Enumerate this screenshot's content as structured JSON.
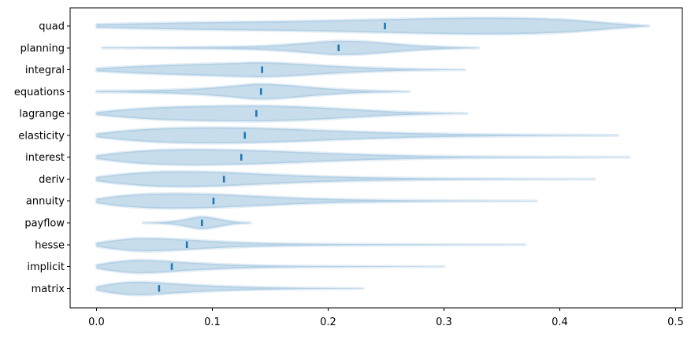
{
  "figure": {
    "background": "#ffffff",
    "violin_fill_color": "#1f77b4",
    "violin_fill_opacity": 0.25,
    "violin_halo_opacity": 0.12,
    "median_tick_color": "#1f77b4",
    "axis_line_color": "#000000",
    "tick_label_color": "#000000"
  },
  "chart_data": {
    "type": "violin",
    "orientation": "horizontal",
    "title": "",
    "xlabel": "",
    "ylabel": "",
    "grid": false,
    "legend": null,
    "xlim": [
      -0.023,
      0.506
    ],
    "x_ticks": [
      0.0,
      0.1,
      0.2,
      0.3,
      0.4,
      0.5
    ],
    "x_tick_labels": [
      "0.0",
      "0.1",
      "0.2",
      "0.3",
      "0.4",
      "0.5"
    ],
    "categories": [
      "quad",
      "planning",
      "integral",
      "equations",
      "lagrange",
      "elasticity",
      "interest",
      "deriv",
      "annuity",
      "payflow",
      "hesse",
      "implicit",
      "matrix"
    ],
    "series": [
      {
        "name": "quad",
        "median": 0.249,
        "min": 0.0,
        "max": 0.477,
        "profile": [
          [
            0.0,
            2.2
          ],
          [
            0.04,
            3.5
          ],
          [
            0.08,
            4.5
          ],
          [
            0.12,
            5.3
          ],
          [
            0.16,
            6.0
          ],
          [
            0.2,
            7.0
          ],
          [
            0.24,
            8.2
          ],
          [
            0.28,
            9.5
          ],
          [
            0.32,
            10.4
          ],
          [
            0.36,
            10.2
          ],
          [
            0.4,
            8.5
          ],
          [
            0.43,
            5.5
          ],
          [
            0.455,
            2.5
          ],
          [
            0.477,
            0.3
          ]
        ]
      },
      {
        "name": "planning",
        "median": 0.209,
        "min": 0.005,
        "max": 0.33,
        "profile": [
          [
            0.005,
            0.4
          ],
          [
            0.04,
            0.7
          ],
          [
            0.08,
            1.0
          ],
          [
            0.12,
            1.6
          ],
          [
            0.15,
            3.0
          ],
          [
            0.18,
            6.0
          ],
          [
            0.205,
            8.8
          ],
          [
            0.23,
            8.3
          ],
          [
            0.255,
            5.5
          ],
          [
            0.28,
            2.8
          ],
          [
            0.305,
            1.2
          ],
          [
            0.33,
            0.3
          ]
        ]
      },
      {
        "name": "integral",
        "median": 0.143,
        "min": 0.0,
        "max": 0.318,
        "profile": [
          [
            0.0,
            1.8
          ],
          [
            0.03,
            4.2
          ],
          [
            0.06,
            6.0
          ],
          [
            0.09,
            7.3
          ],
          [
            0.12,
            8.6
          ],
          [
            0.143,
            9.3
          ],
          [
            0.17,
            7.8
          ],
          [
            0.2,
            5.2
          ],
          [
            0.23,
            3.0
          ],
          [
            0.26,
            1.5
          ],
          [
            0.29,
            0.7
          ],
          [
            0.318,
            0.25
          ]
        ]
      },
      {
        "name": "equations",
        "median": 0.142,
        "min": 0.0,
        "max": 0.27,
        "profile": [
          [
            0.0,
            0.8
          ],
          [
            0.03,
            1.3
          ],
          [
            0.06,
            2.2
          ],
          [
            0.09,
            4.0
          ],
          [
            0.115,
            6.8
          ],
          [
            0.14,
            9.8
          ],
          [
            0.165,
            8.2
          ],
          [
            0.19,
            5.0
          ],
          [
            0.215,
            2.6
          ],
          [
            0.24,
            1.2
          ],
          [
            0.27,
            0.3
          ]
        ]
      },
      {
        "name": "lagrange",
        "median": 0.138,
        "min": 0.0,
        "max": 0.32,
        "profile": [
          [
            0.0,
            1.8
          ],
          [
            0.025,
            5.0
          ],
          [
            0.05,
            7.5
          ],
          [
            0.08,
            9.0
          ],
          [
            0.11,
            9.8
          ],
          [
            0.14,
            10.0
          ],
          [
            0.17,
            9.0
          ],
          [
            0.2,
            7.0
          ],
          [
            0.23,
            4.5
          ],
          [
            0.26,
            2.3
          ],
          [
            0.29,
            1.0
          ],
          [
            0.32,
            0.3
          ]
        ]
      },
      {
        "name": "elasticity",
        "median": 0.128,
        "min": 0.0,
        "max": 0.45,
        "profile": [
          [
            0.0,
            2.2
          ],
          [
            0.025,
            6.0
          ],
          [
            0.05,
            8.5
          ],
          [
            0.08,
            9.8
          ],
          [
            0.11,
            10.0
          ],
          [
            0.14,
            9.3
          ],
          [
            0.17,
            8.0
          ],
          [
            0.2,
            6.2
          ],
          [
            0.24,
            4.2
          ],
          [
            0.28,
            2.6
          ],
          [
            0.32,
            1.6
          ],
          [
            0.36,
            1.0
          ],
          [
            0.4,
            0.6
          ],
          [
            0.45,
            0.25
          ]
        ]
      },
      {
        "name": "interest",
        "median": 0.125,
        "min": 0.0,
        "max": 0.46,
        "profile": [
          [
            0.0,
            2.2
          ],
          [
            0.025,
            6.5
          ],
          [
            0.05,
            9.0
          ],
          [
            0.08,
            10.0
          ],
          [
            0.11,
            9.6
          ],
          [
            0.14,
            8.6
          ],
          [
            0.17,
            7.0
          ],
          [
            0.2,
            5.2
          ],
          [
            0.24,
            3.2
          ],
          [
            0.28,
            1.9
          ],
          [
            0.32,
            1.1
          ],
          [
            0.36,
            0.7
          ],
          [
            0.41,
            0.4
          ],
          [
            0.46,
            0.2
          ]
        ]
      },
      {
        "name": "deriv",
        "median": 0.11,
        "min": 0.0,
        "max": 0.43,
        "profile": [
          [
            0.0,
            2.5
          ],
          [
            0.02,
            6.0
          ],
          [
            0.045,
            8.8
          ],
          [
            0.07,
            9.8
          ],
          [
            0.1,
            9.2
          ],
          [
            0.13,
            7.5
          ],
          [
            0.16,
            5.5
          ],
          [
            0.19,
            3.8
          ],
          [
            0.23,
            2.3
          ],
          [
            0.27,
            1.4
          ],
          [
            0.31,
            0.9
          ],
          [
            0.36,
            0.5
          ],
          [
            0.43,
            0.2
          ]
        ]
      },
      {
        "name": "annuity",
        "median": 0.101,
        "min": 0.0,
        "max": 0.38,
        "profile": [
          [
            0.0,
            2.5
          ],
          [
            0.02,
            6.5
          ],
          [
            0.045,
            9.0
          ],
          [
            0.07,
            9.5
          ],
          [
            0.095,
            9.0
          ],
          [
            0.12,
            7.5
          ],
          [
            0.15,
            5.5
          ],
          [
            0.18,
            3.6
          ],
          [
            0.22,
            2.0
          ],
          [
            0.26,
            1.2
          ],
          [
            0.31,
            0.6
          ],
          [
            0.38,
            0.2
          ]
        ]
      },
      {
        "name": "payflow",
        "median": 0.091,
        "min": 0.04,
        "max": 0.133,
        "profile": [
          [
            0.04,
            0.3
          ],
          [
            0.055,
            0.9
          ],
          [
            0.068,
            2.5
          ],
          [
            0.08,
            5.5
          ],
          [
            0.09,
            8.0
          ],
          [
            0.1,
            6.5
          ],
          [
            0.112,
            3.2
          ],
          [
            0.122,
            1.2
          ],
          [
            0.133,
            0.3
          ]
        ]
      },
      {
        "name": "hesse",
        "median": 0.078,
        "min": 0.0,
        "max": 0.37,
        "profile": [
          [
            0.0,
            2.2
          ],
          [
            0.015,
            5.5
          ],
          [
            0.035,
            8.2
          ],
          [
            0.055,
            8.0
          ],
          [
            0.075,
            6.6
          ],
          [
            0.095,
            5.0
          ],
          [
            0.12,
            3.2
          ],
          [
            0.15,
            1.9
          ],
          [
            0.19,
            1.1
          ],
          [
            0.24,
            0.7
          ],
          [
            0.3,
            0.4
          ],
          [
            0.37,
            0.15
          ]
        ]
      },
      {
        "name": "implicit",
        "median": 0.065,
        "min": 0.0,
        "max": 0.3,
        "profile": [
          [
            0.0,
            2.2
          ],
          [
            0.015,
            5.8
          ],
          [
            0.035,
            8.3
          ],
          [
            0.055,
            7.5
          ],
          [
            0.075,
            5.6
          ],
          [
            0.095,
            4.0
          ],
          [
            0.12,
            2.4
          ],
          [
            0.15,
            1.3
          ],
          [
            0.19,
            0.7
          ],
          [
            0.24,
            0.4
          ],
          [
            0.3,
            0.15
          ]
        ]
      },
      {
        "name": "matrix",
        "median": 0.054,
        "min": 0.0,
        "max": 0.23,
        "profile": [
          [
            0.0,
            2.2
          ],
          [
            0.012,
            5.5
          ],
          [
            0.03,
            8.3
          ],
          [
            0.048,
            8.0
          ],
          [
            0.065,
            6.3
          ],
          [
            0.085,
            4.6
          ],
          [
            0.105,
            3.2
          ],
          [
            0.13,
            2.0
          ],
          [
            0.16,
            1.1
          ],
          [
            0.19,
            0.6
          ],
          [
            0.23,
            0.25
          ]
        ]
      }
    ]
  }
}
